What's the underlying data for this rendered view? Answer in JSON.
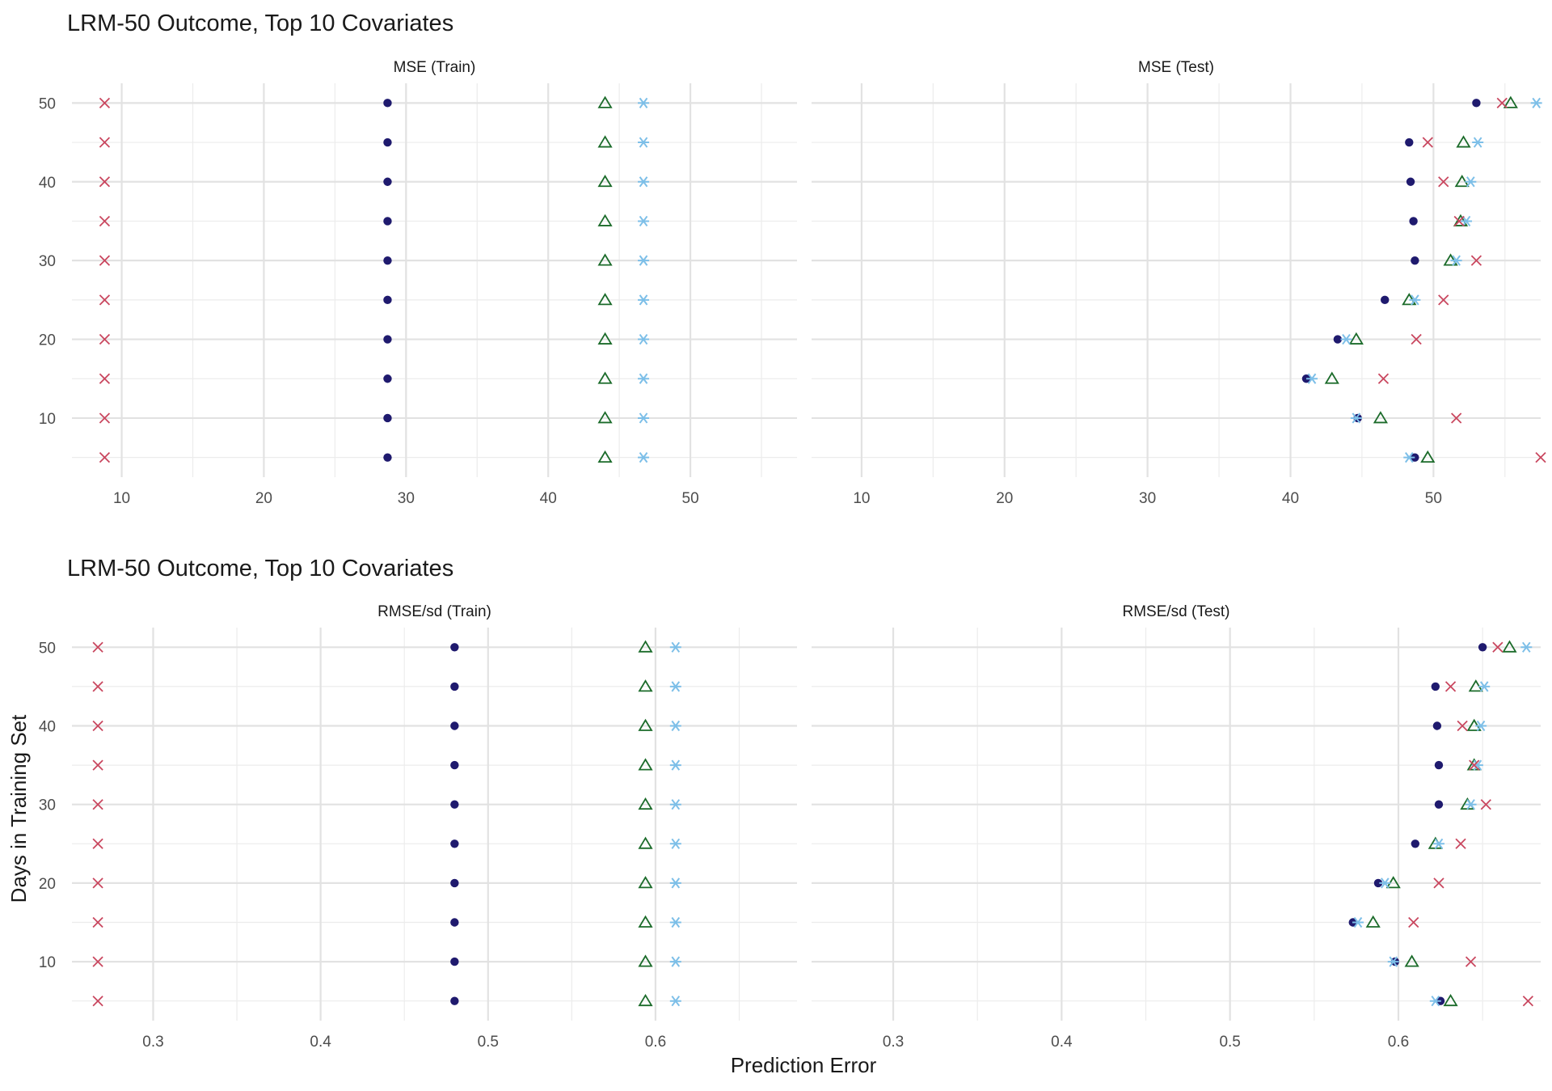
{
  "chart_data": {
    "type": "scatter",
    "xlabel": "Prediction Error",
    "ylabel": "Days in Training Set",
    "y_ticks": [
      10,
      20,
      30,
      40,
      50
    ],
    "colors": {
      "series_1": "#1f1a6e",
      "series_2": "#1b6b2a",
      "series_3": "#7dbfe8",
      "series_4": "#c9475f"
    },
    "rows": [
      {
        "title": "LRM-50 Outcome, Top 10 Covariates",
        "panels": [
          {
            "strip": "MSE (Train)",
            "xlim": [
              6.5,
              57.5
            ],
            "x_ticks": [
              10,
              20,
              30,
              40,
              50
            ],
            "series": [
              {
                "marker": "circle",
                "color": "#1f1a6e",
                "points": [
                  [
                    28.7,
                    5
                  ],
                  [
                    28.7,
                    10
                  ],
                  [
                    28.7,
                    15
                  ],
                  [
                    28.7,
                    20
                  ],
                  [
                    28.7,
                    25
                  ],
                  [
                    28.7,
                    30
                  ],
                  [
                    28.7,
                    35
                  ],
                  [
                    28.7,
                    40
                  ],
                  [
                    28.7,
                    45
                  ],
                  [
                    28.7,
                    50
                  ]
                ]
              },
              {
                "marker": "triangle",
                "color": "#1b6b2a",
                "points": [
                  [
                    44.0,
                    5
                  ],
                  [
                    44.0,
                    10
                  ],
                  [
                    44.0,
                    15
                  ],
                  [
                    44.0,
                    20
                  ],
                  [
                    44.0,
                    25
                  ],
                  [
                    44.0,
                    30
                  ],
                  [
                    44.0,
                    35
                  ],
                  [
                    44.0,
                    40
                  ],
                  [
                    44.0,
                    45
                  ],
                  [
                    44.0,
                    50
                  ]
                ]
              },
              {
                "marker": "asterisk",
                "color": "#7dbfe8",
                "points": [
                  [
                    46.7,
                    5
                  ],
                  [
                    46.7,
                    10
                  ],
                  [
                    46.7,
                    15
                  ],
                  [
                    46.7,
                    20
                  ],
                  [
                    46.7,
                    25
                  ],
                  [
                    46.7,
                    30
                  ],
                  [
                    46.7,
                    35
                  ],
                  [
                    46.7,
                    40
                  ],
                  [
                    46.7,
                    45
                  ],
                  [
                    46.7,
                    50
                  ]
                ]
              },
              {
                "marker": "cross",
                "color": "#c9475f",
                "points": [
                  [
                    8.8,
                    5
                  ],
                  [
                    8.8,
                    10
                  ],
                  [
                    8.8,
                    15
                  ],
                  [
                    8.8,
                    20
                  ],
                  [
                    8.8,
                    25
                  ],
                  [
                    8.8,
                    30
                  ],
                  [
                    8.8,
                    35
                  ],
                  [
                    8.8,
                    40
                  ],
                  [
                    8.8,
                    45
                  ],
                  [
                    8.8,
                    50
                  ]
                ]
              }
            ]
          },
          {
            "strip": "MSE (Test)",
            "xlim": [
              6.5,
              57.5
            ],
            "x_ticks": [
              10,
              20,
              30,
              40,
              50
            ],
            "series": [
              {
                "marker": "circle",
                "color": "#1f1a6e",
                "points": [
                  [
                    48.7,
                    5
                  ],
                  [
                    44.7,
                    10
                  ],
                  [
                    41.1,
                    15
                  ],
                  [
                    43.3,
                    20
                  ],
                  [
                    46.6,
                    25
                  ],
                  [
                    48.7,
                    30
                  ],
                  [
                    48.6,
                    35
                  ],
                  [
                    48.4,
                    40
                  ],
                  [
                    48.3,
                    45
                  ],
                  [
                    53.0,
                    50
                  ]
                ]
              },
              {
                "marker": "triangle",
                "color": "#1b6b2a",
                "points": [
                  [
                    49.6,
                    5
                  ],
                  [
                    46.3,
                    10
                  ],
                  [
                    42.9,
                    15
                  ],
                  [
                    44.6,
                    20
                  ],
                  [
                    48.3,
                    25
                  ],
                  [
                    51.2,
                    30
                  ],
                  [
                    51.9,
                    35
                  ],
                  [
                    52.0,
                    40
                  ],
                  [
                    52.1,
                    45
                  ],
                  [
                    55.4,
                    50
                  ]
                ]
              },
              {
                "marker": "asterisk",
                "color": "#7dbfe8",
                "points": [
                  [
                    48.3,
                    5
                  ],
                  [
                    44.6,
                    10
                  ],
                  [
                    41.5,
                    15
                  ],
                  [
                    43.9,
                    20
                  ],
                  [
                    48.7,
                    25
                  ],
                  [
                    51.6,
                    30
                  ],
                  [
                    52.3,
                    35
                  ],
                  [
                    52.6,
                    40
                  ],
                  [
                    53.1,
                    45
                  ],
                  [
                    57.2,
                    50
                  ]
                ]
              },
              {
                "marker": "cross",
                "color": "#c9475f",
                "points": [
                  [
                    57.5,
                    5
                  ],
                  [
                    51.6,
                    10
                  ],
                  [
                    46.5,
                    15
                  ],
                  [
                    48.8,
                    20
                  ],
                  [
                    50.7,
                    25
                  ],
                  [
                    53.0,
                    30
                  ],
                  [
                    51.8,
                    35
                  ],
                  [
                    50.7,
                    40
                  ],
                  [
                    49.6,
                    45
                  ],
                  [
                    54.8,
                    50
                  ]
                ]
              }
            ]
          }
        ]
      },
      {
        "title": "LRM-50 Outcome, Top 10 Covariates",
        "panels": [
          {
            "strip": "RMSE/sd (Train)",
            "xlim": [
              0.2515,
              0.6845
            ],
            "x_ticks": [
              0.3,
              0.4,
              0.5,
              0.6
            ],
            "series": [
              {
                "marker": "circle",
                "color": "#1f1a6e",
                "points": [
                  [
                    0.48,
                    5
                  ],
                  [
                    0.48,
                    10
                  ],
                  [
                    0.48,
                    15
                  ],
                  [
                    0.48,
                    20
                  ],
                  [
                    0.48,
                    25
                  ],
                  [
                    0.48,
                    30
                  ],
                  [
                    0.48,
                    35
                  ],
                  [
                    0.48,
                    40
                  ],
                  [
                    0.48,
                    45
                  ],
                  [
                    0.48,
                    50
                  ]
                ]
              },
              {
                "marker": "triangle",
                "color": "#1b6b2a",
                "points": [
                  [
                    0.594,
                    5
                  ],
                  [
                    0.594,
                    10
                  ],
                  [
                    0.594,
                    15
                  ],
                  [
                    0.594,
                    20
                  ],
                  [
                    0.594,
                    25
                  ],
                  [
                    0.594,
                    30
                  ],
                  [
                    0.594,
                    35
                  ],
                  [
                    0.594,
                    40
                  ],
                  [
                    0.594,
                    45
                  ],
                  [
                    0.594,
                    50
                  ]
                ]
              },
              {
                "marker": "asterisk",
                "color": "#7dbfe8",
                "points": [
                  [
                    0.612,
                    5
                  ],
                  [
                    0.612,
                    10
                  ],
                  [
                    0.612,
                    15
                  ],
                  [
                    0.612,
                    20
                  ],
                  [
                    0.612,
                    25
                  ],
                  [
                    0.612,
                    30
                  ],
                  [
                    0.612,
                    35
                  ],
                  [
                    0.612,
                    40
                  ],
                  [
                    0.612,
                    45
                  ],
                  [
                    0.612,
                    50
                  ]
                ]
              },
              {
                "marker": "cross",
                "color": "#c9475f",
                "points": [
                  [
                    0.267,
                    5
                  ],
                  [
                    0.267,
                    10
                  ],
                  [
                    0.267,
                    15
                  ],
                  [
                    0.267,
                    20
                  ],
                  [
                    0.267,
                    25
                  ],
                  [
                    0.267,
                    30
                  ],
                  [
                    0.267,
                    35
                  ],
                  [
                    0.267,
                    40
                  ],
                  [
                    0.267,
                    45
                  ],
                  [
                    0.267,
                    50
                  ]
                ]
              }
            ]
          },
          {
            "strip": "RMSE/sd (Test)",
            "xlim": [
              0.2515,
              0.6845
            ],
            "x_ticks": [
              0.3,
              0.4,
              0.5,
              0.6
            ],
            "series": [
              {
                "marker": "circle",
                "color": "#1f1a6e",
                "points": [
                  [
                    0.625,
                    5
                  ],
                  [
                    0.598,
                    10
                  ],
                  [
                    0.573,
                    15
                  ],
                  [
                    0.588,
                    20
                  ],
                  [
                    0.61,
                    25
                  ],
                  [
                    0.624,
                    30
                  ],
                  [
                    0.624,
                    35
                  ],
                  [
                    0.623,
                    40
                  ],
                  [
                    0.622,
                    45
                  ],
                  [
                    0.65,
                    50
                  ]
                ]
              },
              {
                "marker": "triangle",
                "color": "#1b6b2a",
                "points": [
                  [
                    0.631,
                    5
                  ],
                  [
                    0.608,
                    10
                  ],
                  [
                    0.585,
                    15
                  ],
                  [
                    0.597,
                    20
                  ],
                  [
                    0.622,
                    25
                  ],
                  [
                    0.641,
                    30
                  ],
                  [
                    0.645,
                    35
                  ],
                  [
                    0.645,
                    40
                  ],
                  [
                    0.646,
                    45
                  ],
                  [
                    0.666,
                    50
                  ]
                ]
              },
              {
                "marker": "asterisk",
                "color": "#7dbfe8",
                "points": [
                  [
                    0.622,
                    5
                  ],
                  [
                    0.597,
                    10
                  ],
                  [
                    0.576,
                    15
                  ],
                  [
                    0.592,
                    20
                  ],
                  [
                    0.624,
                    25
                  ],
                  [
                    0.643,
                    30
                  ],
                  [
                    0.647,
                    35
                  ],
                  [
                    0.649,
                    40
                  ],
                  [
                    0.651,
                    45
                  ],
                  [
                    0.676,
                    50
                  ]
                ]
              },
              {
                "marker": "cross",
                "color": "#c9475f",
                "points": [
                  [
                    0.677,
                    5
                  ],
                  [
                    0.643,
                    10
                  ],
                  [
                    0.609,
                    15
                  ],
                  [
                    0.624,
                    20
                  ],
                  [
                    0.637,
                    25
                  ],
                  [
                    0.652,
                    30
                  ],
                  [
                    0.645,
                    35
                  ],
                  [
                    0.638,
                    40
                  ],
                  [
                    0.631,
                    45
                  ],
                  [
                    0.659,
                    50
                  ]
                ]
              }
            ]
          }
        ]
      }
    ]
  }
}
